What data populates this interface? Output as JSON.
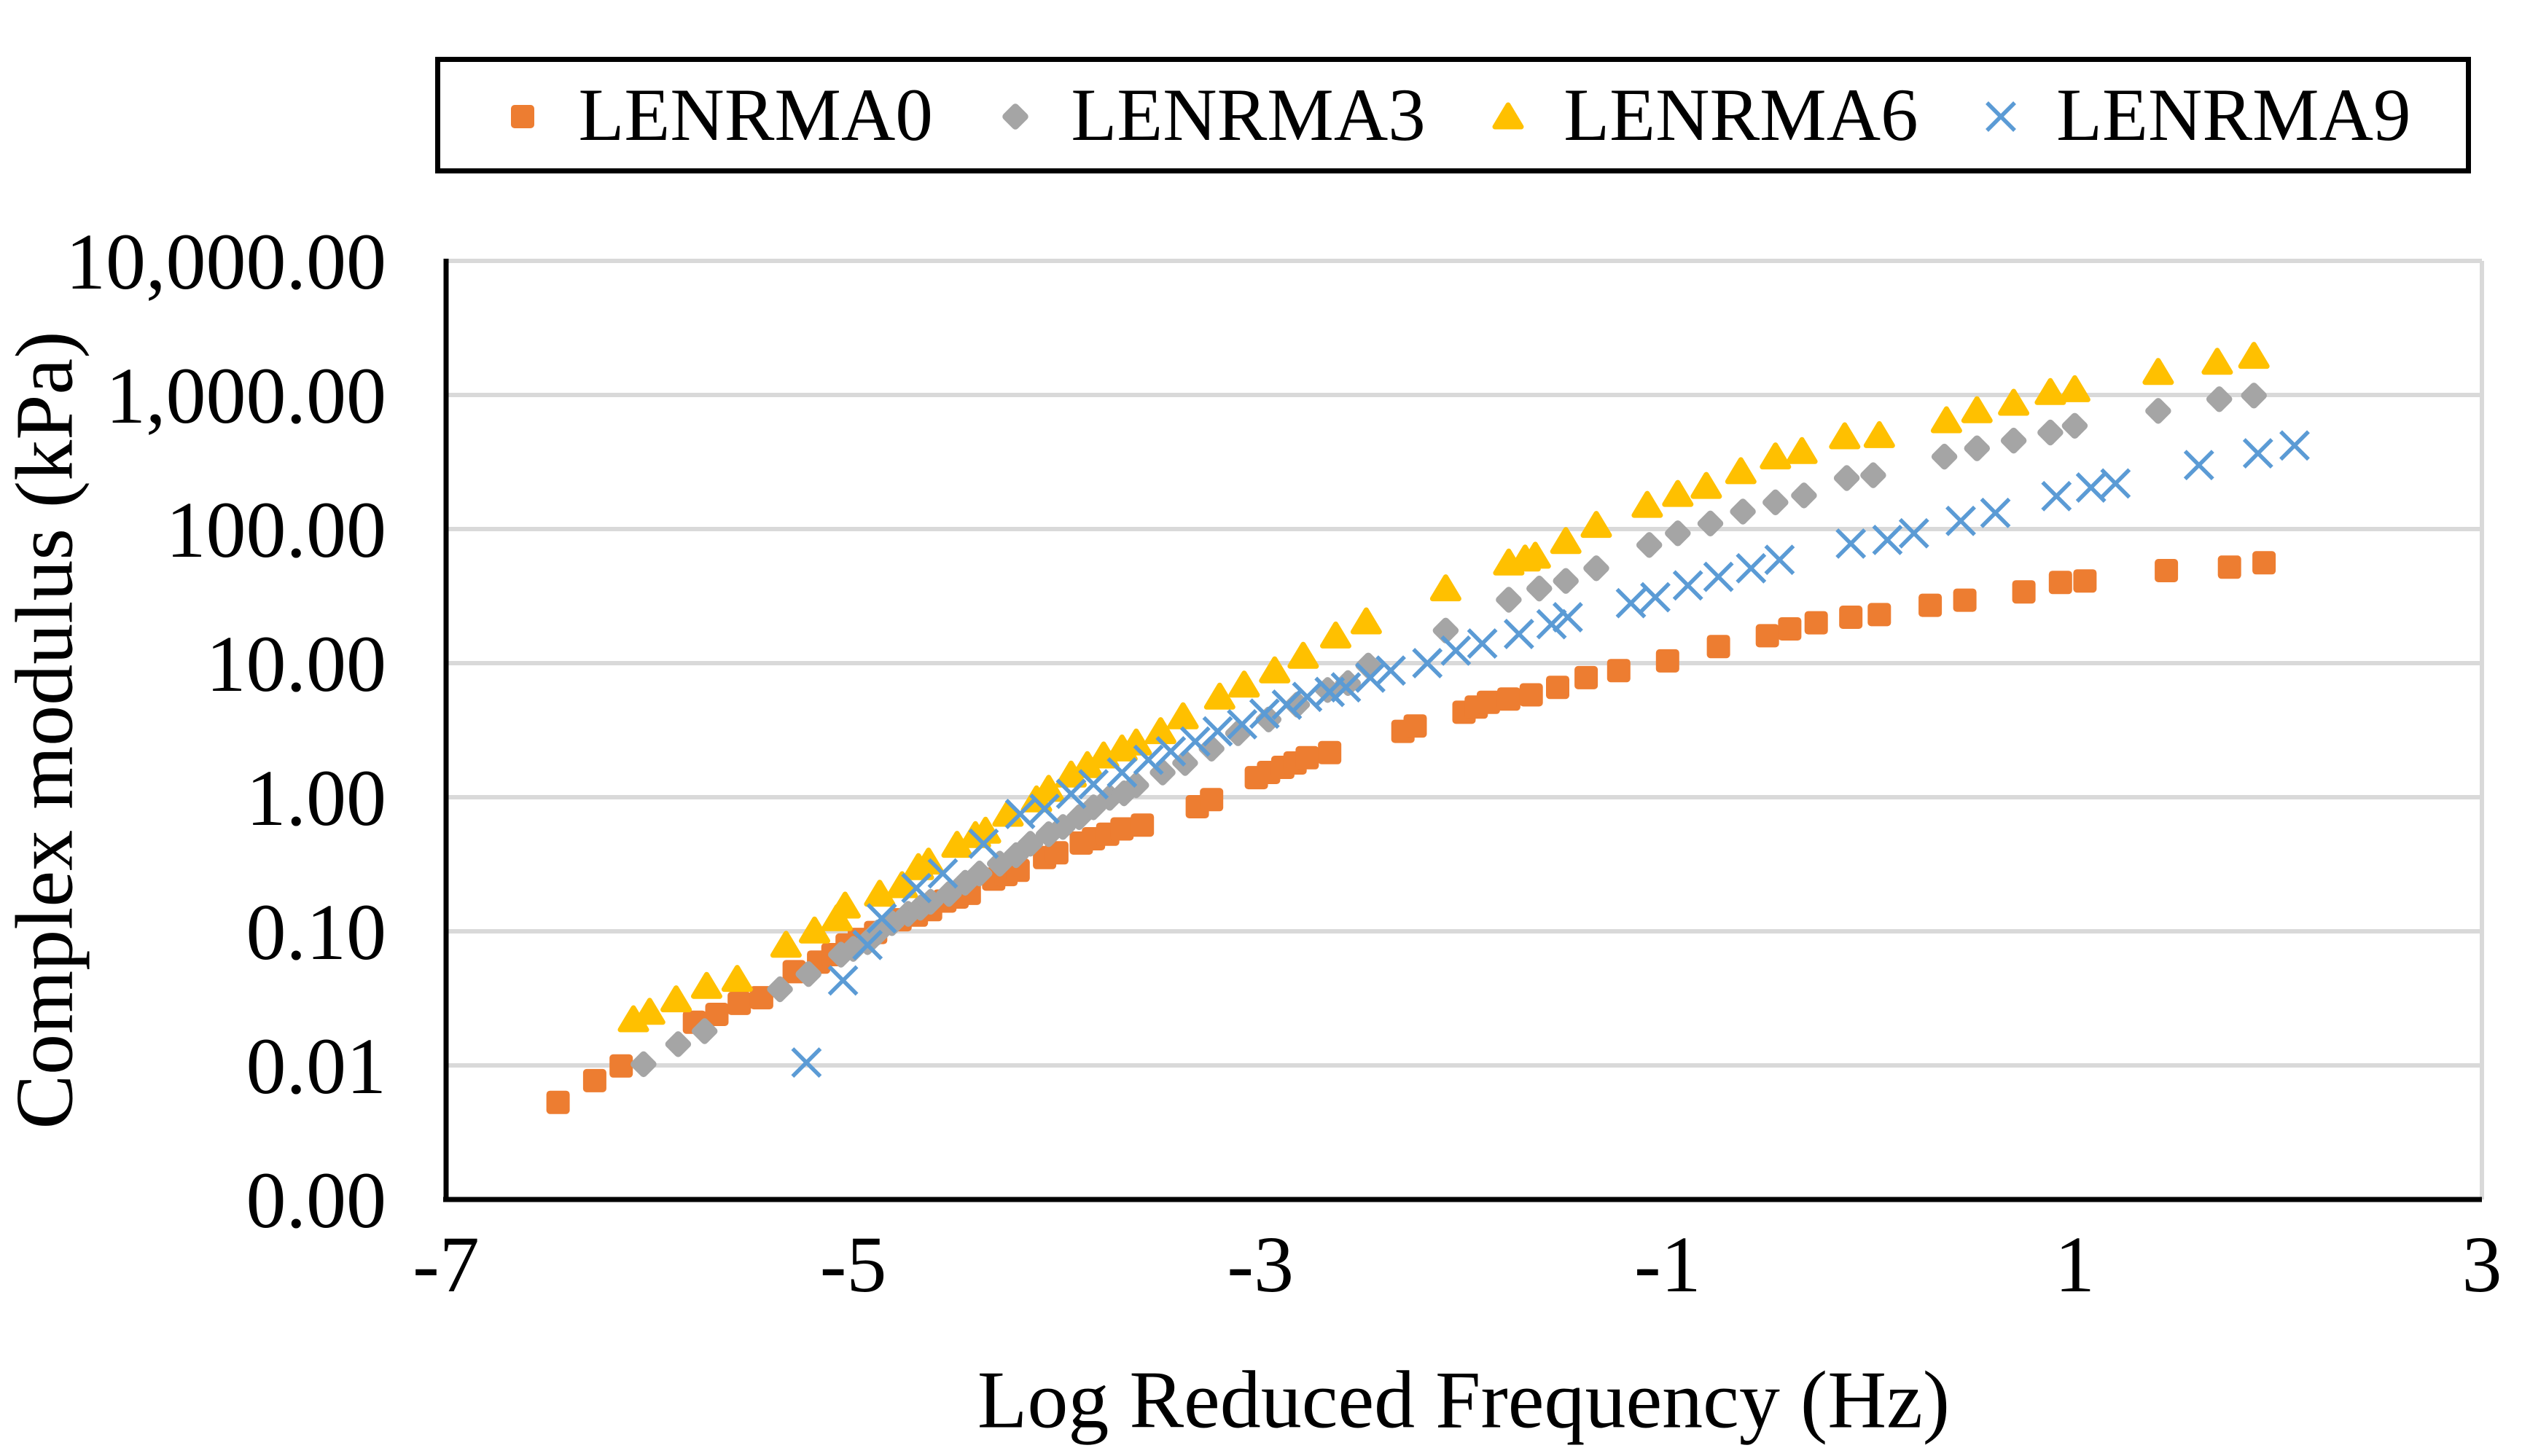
{
  "figure": {
    "background": "#ffffff"
  },
  "colors": {
    "grid": "#d9d9d9",
    "axis": "#000000",
    "text": "#000000",
    "orange": "#ED7D31",
    "gray": "#A5A5A5",
    "yellow": "#FFC000",
    "blue": "#5B9BD5"
  },
  "chart_data": {
    "type": "scatter",
    "title": "",
    "xlabel": "Log Reduced Frequency (Hz)",
    "ylabel": "Complex modulus (kPa)",
    "grid": "horizontal",
    "legend_position": "top",
    "x_axis": {
      "min": -7,
      "max": 3,
      "ticks": [
        -7,
        -5,
        -3,
        -1,
        1,
        3
      ],
      "tick_labels": [
        "-7",
        "-5",
        "-3",
        "-1",
        "1",
        "3"
      ]
    },
    "y_axis": {
      "scale": "log",
      "min": 0.001,
      "max": 10000,
      "tick_values": [
        10000,
        1000,
        100,
        10,
        1,
        0.1,
        0.01,
        0.001
      ],
      "tick_labels": [
        "10,000.00",
        "1,000.00",
        "100.00",
        "10.00",
        "1.00",
        "0.10",
        "0.01",
        "0.00"
      ]
    },
    "series": [
      {
        "name": "LENRMA0",
        "marker": "square",
        "color": "#ED7D31",
        "points": [
          [
            -6.45,
            0.0053
          ],
          [
            -6.27,
            0.0077
          ],
          [
            -6.14,
            0.0099
          ],
          [
            -5.78,
            0.021
          ],
          [
            -5.67,
            0.024
          ],
          [
            -5.56,
            0.029
          ],
          [
            -5.45,
            0.032
          ],
          [
            -5.29,
            0.05
          ],
          [
            -5.17,
            0.059
          ],
          [
            -5.1,
            0.067
          ],
          [
            -5.03,
            0.079
          ],
          [
            -4.97,
            0.087
          ],
          [
            -4.89,
            0.098
          ],
          [
            -4.77,
            0.122
          ],
          [
            -4.69,
            0.132
          ],
          [
            -4.62,
            0.145
          ],
          [
            -4.55,
            0.168
          ],
          [
            -4.49,
            0.18
          ],
          [
            -4.43,
            0.192
          ],
          [
            -4.31,
            0.245
          ],
          [
            -4.25,
            0.265
          ],
          [
            -4.19,
            0.285
          ],
          [
            -4.06,
            0.355
          ],
          [
            -4.0,
            0.385
          ],
          [
            -3.88,
            0.455
          ],
          [
            -3.82,
            0.49
          ],
          [
            -3.75,
            0.53
          ],
          [
            -3.68,
            0.58
          ],
          [
            -3.58,
            0.62
          ],
          [
            -3.31,
            0.85
          ],
          [
            -3.24,
            0.96
          ],
          [
            -3.02,
            1.4
          ],
          [
            -2.96,
            1.53
          ],
          [
            -2.89,
            1.67
          ],
          [
            -2.83,
            1.8
          ],
          [
            -2.77,
            1.97
          ],
          [
            -2.66,
            2.15
          ],
          [
            -2.3,
            3.1
          ],
          [
            -2.24,
            3.4
          ],
          [
            -2.0,
            4.3
          ],
          [
            -1.94,
            4.7
          ],
          [
            -1.88,
            5.1
          ],
          [
            -1.78,
            5.4
          ],
          [
            -1.67,
            5.8
          ],
          [
            -1.54,
            6.6
          ],
          [
            -1.4,
            7.8
          ],
          [
            -1.24,
            8.8
          ],
          [
            -1.0,
            10.4
          ],
          [
            -0.75,
            13.3
          ],
          [
            -0.51,
            16
          ],
          [
            -0.4,
            18
          ],
          [
            -0.27,
            20
          ],
          [
            -0.1,
            22
          ],
          [
            0.04,
            23
          ],
          [
            0.29,
            27
          ],
          [
            0.46,
            29.5
          ],
          [
            0.75,
            34
          ],
          [
            0.93,
            40
          ],
          [
            1.05,
            41
          ],
          [
            1.45,
            49
          ],
          [
            1.76,
            52
          ],
          [
            1.93,
            56
          ]
        ]
      },
      {
        "name": "LENRMA3",
        "marker": "diamond",
        "color": "#A5A5A5",
        "points": [
          [
            -6.03,
            0.0102
          ],
          [
            -5.86,
            0.0144
          ],
          [
            -5.73,
            0.018
          ],
          [
            -5.36,
            0.037
          ],
          [
            -5.22,
            0.048
          ],
          [
            -5.06,
            0.067
          ],
          [
            -5.0,
            0.074
          ],
          [
            -4.93,
            0.083
          ],
          [
            -4.88,
            0.098
          ],
          [
            -4.81,
            0.115
          ],
          [
            -4.73,
            0.135
          ],
          [
            -4.67,
            0.15
          ],
          [
            -4.62,
            0.166
          ],
          [
            -4.53,
            0.19
          ],
          [
            -4.45,
            0.23
          ],
          [
            -4.38,
            0.27
          ],
          [
            -4.28,
            0.32
          ],
          [
            -4.2,
            0.37
          ],
          [
            -4.13,
            0.45
          ],
          [
            -4.04,
            0.53
          ],
          [
            -3.97,
            0.6
          ],
          [
            -3.89,
            0.71
          ],
          [
            -3.82,
            0.84
          ],
          [
            -3.74,
            0.99
          ],
          [
            -3.67,
            1.07
          ],
          [
            -3.61,
            1.23
          ],
          [
            -3.48,
            1.53
          ],
          [
            -3.37,
            1.8
          ],
          [
            -3.24,
            2.3
          ],
          [
            -3.11,
            3.0
          ],
          [
            -2.96,
            3.8
          ],
          [
            -2.82,
            4.9
          ],
          [
            -2.67,
            6.3
          ],
          [
            -2.57,
            7.1
          ],
          [
            -2.47,
            9.6
          ],
          [
            -2.09,
            17.5
          ],
          [
            -1.78,
            29.7
          ],
          [
            -1.63,
            36
          ],
          [
            -1.5,
            41
          ],
          [
            -1.35,
            51
          ],
          [
            -1.09,
            76
          ],
          [
            -0.95,
            93
          ],
          [
            -0.79,
            110
          ],
          [
            -0.63,
            135
          ],
          [
            -0.47,
            158
          ],
          [
            -0.33,
            178
          ],
          [
            -0.12,
            240
          ],
          [
            0.01,
            252
          ],
          [
            0.36,
            347
          ],
          [
            0.52,
            400
          ],
          [
            0.7,
            457
          ],
          [
            0.88,
            525
          ],
          [
            1.0,
            589
          ],
          [
            1.41,
            760
          ],
          [
            1.71,
            930
          ],
          [
            1.88,
            990
          ]
        ]
      },
      {
        "name": "LENRMA6",
        "marker": "triangle",
        "color": "#FFC000",
        "points": [
          [
            -6.08,
            0.022
          ],
          [
            -6.0,
            0.025
          ],
          [
            -5.87,
            0.031
          ],
          [
            -5.72,
            0.039
          ],
          [
            -5.57,
            0.044
          ],
          [
            -5.33,
            0.079
          ],
          [
            -5.19,
            0.101
          ],
          [
            -5.08,
            0.125
          ],
          [
            -5.04,
            0.155
          ],
          [
            -4.87,
            0.19
          ],
          [
            -4.76,
            0.22
          ],
          [
            -4.68,
            0.3
          ],
          [
            -4.63,
            0.33
          ],
          [
            -4.49,
            0.44
          ],
          [
            -4.4,
            0.52
          ],
          [
            -4.35,
            0.56
          ],
          [
            -4.24,
            0.75
          ],
          [
            -4.1,
            0.96
          ],
          [
            -4.04,
            1.15
          ],
          [
            -3.93,
            1.47
          ],
          [
            -3.85,
            1.73
          ],
          [
            -3.77,
            2.04
          ],
          [
            -3.68,
            2.3
          ],
          [
            -3.61,
            2.55
          ],
          [
            -3.49,
            3.1
          ],
          [
            -3.38,
            4.0
          ],
          [
            -3.2,
            5.6
          ],
          [
            -3.08,
            6.9
          ],
          [
            -2.93,
            8.8
          ],
          [
            -2.79,
            11.3
          ],
          [
            -2.63,
            16
          ],
          [
            -2.48,
            20.4
          ],
          [
            -2.09,
            36
          ],
          [
            -1.78,
            56
          ],
          [
            -1.7,
            60
          ],
          [
            -1.65,
            63
          ],
          [
            -1.5,
            81
          ],
          [
            -1.35,
            107
          ],
          [
            -1.1,
            151
          ],
          [
            -0.95,
            182
          ],
          [
            -0.81,
            209
          ],
          [
            -0.64,
            269
          ],
          [
            -0.47,
            347
          ],
          [
            -0.34,
            380
          ],
          [
            -0.13,
            490
          ],
          [
            0.04,
            500
          ],
          [
            0.37,
            645
          ],
          [
            0.52,
            767
          ],
          [
            0.7,
            871
          ],
          [
            0.88,
            1047
          ],
          [
            1.0,
            1100
          ],
          [
            1.41,
            1480
          ],
          [
            1.7,
            1760
          ],
          [
            1.88,
            1950
          ]
        ]
      },
      {
        "name": "LENRMA9",
        "marker": "x",
        "color": "#5B9BD5",
        "points": [
          [
            -5.23,
            0.0105
          ],
          [
            -5.05,
            0.043
          ],
          [
            -4.93,
            0.079
          ],
          [
            -4.86,
            0.125
          ],
          [
            -4.69,
            0.21
          ],
          [
            -4.56,
            0.27
          ],
          [
            -4.36,
            0.45
          ],
          [
            -4.18,
            0.75
          ],
          [
            -4.06,
            0.82
          ],
          [
            -3.93,
            1.06
          ],
          [
            -3.82,
            1.25
          ],
          [
            -3.68,
            1.53
          ],
          [
            -3.55,
            1.9
          ],
          [
            -3.44,
            2.2
          ],
          [
            -3.32,
            2.6
          ],
          [
            -3.21,
            3.1
          ],
          [
            -3.09,
            3.5
          ],
          [
            -2.98,
            4.2
          ],
          [
            -2.87,
            4.9
          ],
          [
            -2.77,
            5.6
          ],
          [
            -2.66,
            6.1
          ],
          [
            -2.58,
            6.6
          ],
          [
            -2.46,
            7.8
          ],
          [
            -2.36,
            8.8
          ],
          [
            -2.18,
            10
          ],
          [
            -2.04,
            12.4
          ],
          [
            -1.91,
            14
          ],
          [
            -1.73,
            16.5
          ],
          [
            -1.57,
            19.5
          ],
          [
            -1.49,
            22
          ],
          [
            -1.18,
            28
          ],
          [
            -1.06,
            31
          ],
          [
            -0.9,
            38
          ],
          [
            -0.75,
            44
          ],
          [
            -0.59,
            51
          ],
          [
            -0.45,
            59
          ],
          [
            -0.1,
            78
          ],
          [
            0.08,
            83
          ],
          [
            0.21,
            93
          ],
          [
            0.44,
            115
          ],
          [
            0.61,
            132
          ],
          [
            0.91,
            176
          ],
          [
            1.08,
            204
          ],
          [
            1.2,
            219
          ],
          [
            1.61,
            300
          ],
          [
            1.9,
            367
          ],
          [
            2.08,
            420
          ]
        ]
      }
    ]
  }
}
